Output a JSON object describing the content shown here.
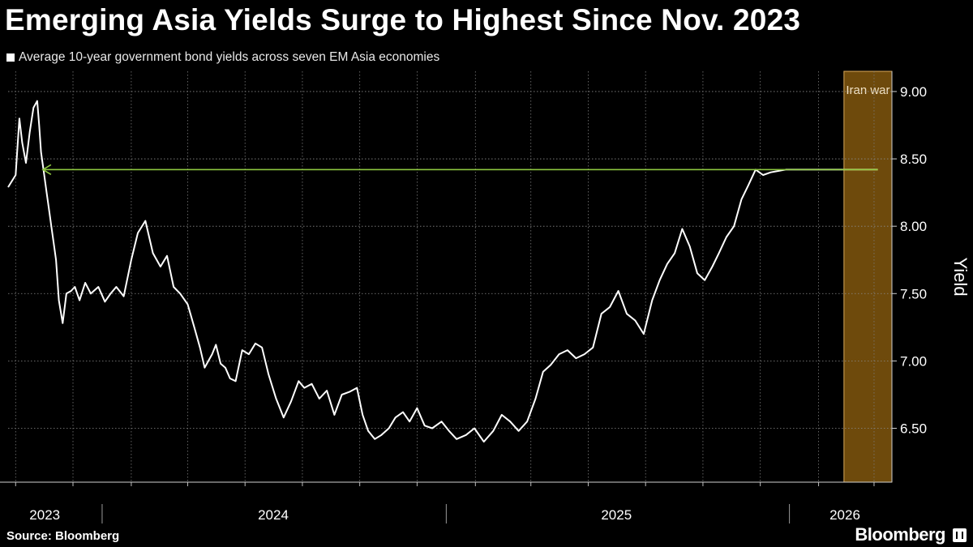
{
  "header": {
    "title": "Emerging Asia Yields Surge to Highest Since Nov. 2023",
    "legend_label": "Average 10-year government bond yields across seven EM Asia economies"
  },
  "footer": {
    "source": "Source: Bloomberg",
    "brand": "Bloomberg"
  },
  "colors": {
    "background": "#000000",
    "line": "#ffffff",
    "highlight_line": "#ffe2a8",
    "band_fill": "#6e4a0c",
    "band_border": "#d9a85a",
    "arrow": "#8cc63f"
  },
  "chart_data": {
    "type": "line",
    "title": "Emerging Asia Yields Surge to Highest Since Nov. 2023",
    "ylabel": "Yield",
    "xlabel": "",
    "ylim": [
      6.1,
      9.15
    ],
    "xlim": [
      "2023-09-23",
      "2026-04-20"
    ],
    "y_ticks": [
      6.5,
      7.0,
      7.5,
      8.0,
      8.5,
      9.0
    ],
    "y_tick_labels": [
      "6.50",
      "7.00",
      "7.50",
      "8.00",
      "8.50",
      "9.00"
    ],
    "x_tick_labels": [
      {
        "label": "2023",
        "date": "2023-11-01"
      },
      {
        "label": "2024",
        "date": "2024-07-01"
      },
      {
        "label": "2025",
        "date": "2025-07-01"
      },
      {
        "label": "2026",
        "date": "2026-03-01"
      }
    ],
    "year_separators": [
      "2024-01-01",
      "2025-01-01",
      "2026-01-01"
    ],
    "grid": true,
    "axis_position": "right",
    "shaded_region": {
      "label": "Iran war",
      "start": "2026-02-28",
      "end": "2026-04-20"
    },
    "reference_arrow": {
      "from": "2026-04-05",
      "to": "2023-10-30",
      "value": 8.42
    },
    "series": [
      {
        "x": [
          "2023-09-23",
          "2023-10-01",
          "2023-10-05",
          "2023-10-08",
          "2023-10-12",
          "2023-10-16",
          "2023-10-20",
          "2023-10-24",
          "2023-10-26",
          "2023-10-28",
          "2023-10-31",
          "2023-11-03",
          "2023-11-06",
          "2023-11-08",
          "2023-11-11",
          "2023-11-13",
          "2023-11-16",
          "2023-11-20",
          "2023-11-24",
          "2023-11-29",
          "2023-12-03",
          "2023-12-08",
          "2023-12-14",
          "2023-12-20",
          "2023-12-28",
          "2024-01-04",
          "2024-01-10",
          "2024-01-16",
          "2024-01-24",
          "2024-02-01",
          "2024-02-08",
          "2024-02-16",
          "2024-02-24",
          "2024-03-03",
          "2024-03-10",
          "2024-03-17",
          "2024-03-24",
          "2024-04-01",
          "2024-04-08",
          "2024-04-14",
          "2024-04-19",
          "2024-04-23",
          "2024-04-27",
          "2024-05-01",
          "2024-05-06",
          "2024-05-11",
          "2024-05-16",
          "2024-05-22",
          "2024-05-29",
          "2024-06-05",
          "2024-06-12",
          "2024-06-19",
          "2024-06-26",
          "2024-07-04",
          "2024-07-12",
          "2024-07-20",
          "2024-07-28",
          "2024-08-03",
          "2024-08-11",
          "2024-08-19",
          "2024-08-27",
          "2024-09-04",
          "2024-09-12",
          "2024-09-20",
          "2024-09-28",
          "2024-10-04",
          "2024-10-10",
          "2024-10-17",
          "2024-10-24",
          "2024-11-01",
          "2024-11-08",
          "2024-11-16",
          "2024-11-23",
          "2024-12-01",
          "2024-12-09",
          "2024-12-17",
          "2024-12-27",
          "2025-01-04",
          "2025-01-12",
          "2025-01-22",
          "2025-01-31",
          "2025-02-10",
          "2025-02-20",
          "2025-03-01",
          "2025-03-10",
          "2025-03-19",
          "2025-03-28",
          "2025-04-06",
          "2025-04-14",
          "2025-04-22",
          "2025-05-01",
          "2025-05-10",
          "2025-05-19",
          "2025-05-28",
          "2025-06-06",
          "2025-06-15",
          "2025-06-24",
          "2025-07-03",
          "2025-07-12",
          "2025-07-21",
          "2025-07-30",
          "2025-08-08",
          "2025-08-16",
          "2025-08-24",
          "2025-09-01",
          "2025-09-09",
          "2025-09-17",
          "2025-09-25",
          "2025-10-03",
          "2025-10-11",
          "2025-10-18",
          "2025-10-26",
          "2025-11-03",
          "2025-11-11",
          "2025-11-18",
          "2025-11-26",
          "2025-12-04",
          "2025-12-12",
          "2025-12-20",
          "2025-12-28",
          "2026-01-05",
          "2026-01-12",
          "2026-01-18",
          "2026-01-24",
          "2026-01-30",
          "2026-02-05",
          "2026-02-11",
          "2026-02-17",
          "2026-02-23",
          "2026-02-27",
          "2026-03-02",
          "2026-03-06",
          "2026-03-10",
          "2026-03-14",
          "2026-03-18",
          "2026-03-22",
          "2026-03-26",
          "2026-03-30",
          "2026-04-03",
          "2026-04-05"
        ],
        "values": [
          8.29,
          8.38,
          8.8,
          8.62,
          8.47,
          8.7,
          8.88,
          8.93,
          8.75,
          8.55,
          8.4,
          8.25,
          8.1,
          8.0,
          7.85,
          7.75,
          7.45,
          7.28,
          7.5,
          7.52,
          7.55,
          7.45,
          7.58,
          7.5,
          7.55,
          7.44,
          7.5,
          7.55,
          7.48,
          7.75,
          7.95,
          8.04,
          7.8,
          7.7,
          7.78,
          7.55,
          7.5,
          7.42,
          7.25,
          7.1,
          6.95,
          7.0,
          7.05,
          7.12,
          6.98,
          6.95,
          6.87,
          6.85,
          7.08,
          7.05,
          7.13,
          7.1,
          6.9,
          6.72,
          6.58,
          6.7,
          6.85,
          6.8,
          6.83,
          6.72,
          6.78,
          6.6,
          6.75,
          6.77,
          6.8,
          6.6,
          6.48,
          6.42,
          6.45,
          6.5,
          6.58,
          6.62,
          6.55,
          6.65,
          6.52,
          6.5,
          6.55,
          6.48,
          6.42,
          6.45,
          6.5,
          6.4,
          6.48,
          6.6,
          6.55,
          6.48,
          6.55,
          6.72,
          6.92,
          6.97,
          7.05,
          7.08,
          7.02,
          7.05,
          7.1,
          7.35,
          7.4,
          7.52,
          7.35,
          7.3,
          7.2,
          7.45,
          7.6,
          7.72,
          7.8,
          7.98,
          7.85,
          7.65,
          7.6,
          7.7,
          7.8,
          7.92,
          8.0,
          8.2,
          8.3,
          8.42,
          8.38,
          8.4,
          8.41,
          8.42,
          8.42,
          8.42,
          8.42,
          8.42,
          8.42,
          8.42,
          8.42,
          8.42,
          8.42,
          8.42,
          8.42,
          8.42,
          8.42,
          8.42,
          8.42,
          8.42,
          8.42,
          8.42,
          8.42,
          8.42
        ]
      }
    ]
  }
}
